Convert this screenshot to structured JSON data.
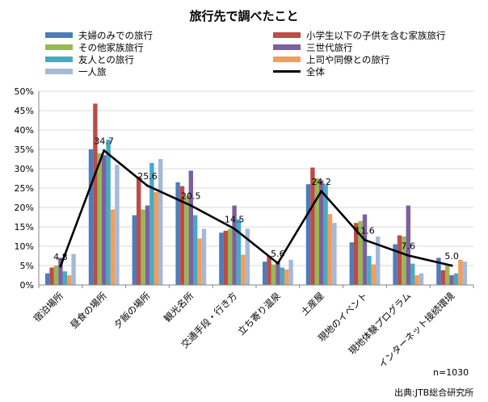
{
  "chart_data": {
    "type": "bar",
    "title": "旅行先で調べたこと",
    "categories": [
      "宿泊場所",
      "昼食の場所",
      "夕飯の場所",
      "観光名所",
      "交通手段・行き方",
      "立ち寄り温泉",
      "土産屋",
      "現地のイベント",
      "現地体験プログラム",
      "インターネット接続環境"
    ],
    "ylim": [
      0,
      50
    ],
    "yticks": [
      "0%",
      "5%",
      "10%",
      "15%",
      "20%",
      "25%",
      "30%",
      "35%",
      "40%",
      "45%",
      "50%"
    ],
    "grid": true,
    "legend_position": "top",
    "series": [
      {
        "name": "夫婦のみでの旅行",
        "color": "#4a7ebb",
        "values": [
          3.0,
          35.0,
          18.0,
          26.5,
          13.5,
          6.0,
          26.0,
          11.0,
          10.5,
          7.0
        ]
      },
      {
        "name": "小学生以下の子供を含む家族旅行",
        "color": "#be4b48",
        "values": [
          4.5,
          46.8,
          28.0,
          25.5,
          14.0,
          7.5,
          30.3,
          16.0,
          12.8,
          3.8
        ]
      },
      {
        "name": "その他家族旅行",
        "color": "#98b954",
        "values": [
          5.0,
          34.0,
          19.5,
          23.0,
          14.5,
          5.3,
          27.5,
          16.5,
          12.5,
          5.0
        ]
      },
      {
        "name": "三世代旅行",
        "color": "#7d60a0",
        "values": [
          7.0,
          33.5,
          20.5,
          29.5,
          20.5,
          6.0,
          27.0,
          18.2,
          20.5,
          2.5
        ]
      },
      {
        "name": "友人との旅行",
        "color": "#46aac5",
        "values": [
          3.5,
          37.5,
          31.5,
          18.0,
          17.0,
          4.5,
          25.8,
          7.5,
          5.5,
          3.0
        ]
      },
      {
        "name": "上司や同僚との旅行",
        "color": "#f59d56",
        "values": [
          2.5,
          19.5,
          24.0,
          12.0,
          7.8,
          4.0,
          18.3,
          5.3,
          2.5,
          6.5
        ]
      },
      {
        "name": "一人旅",
        "color": "#a5b9d7",
        "values": [
          8.0,
          31.0,
          32.5,
          14.5,
          14.5,
          6.5,
          16.0,
          12.5,
          3.0,
          6.0
        ]
      }
    ],
    "total": {
      "name": "全体",
      "color": "#000000",
      "values": [
        4.8,
        34.7,
        25.6,
        20.5,
        14.5,
        5.6,
        24.2,
        11.6,
        7.6,
        5.0
      ]
    }
  },
  "total_labels": [
    "4.8",
    "34.7",
    "25.6",
    "20.5",
    "14.5",
    "5.6",
    "24.2",
    "11.6",
    "7.6",
    "5.0"
  ],
  "footer": {
    "n": "n=1030",
    "source": "出典:JTB総合研究所"
  }
}
